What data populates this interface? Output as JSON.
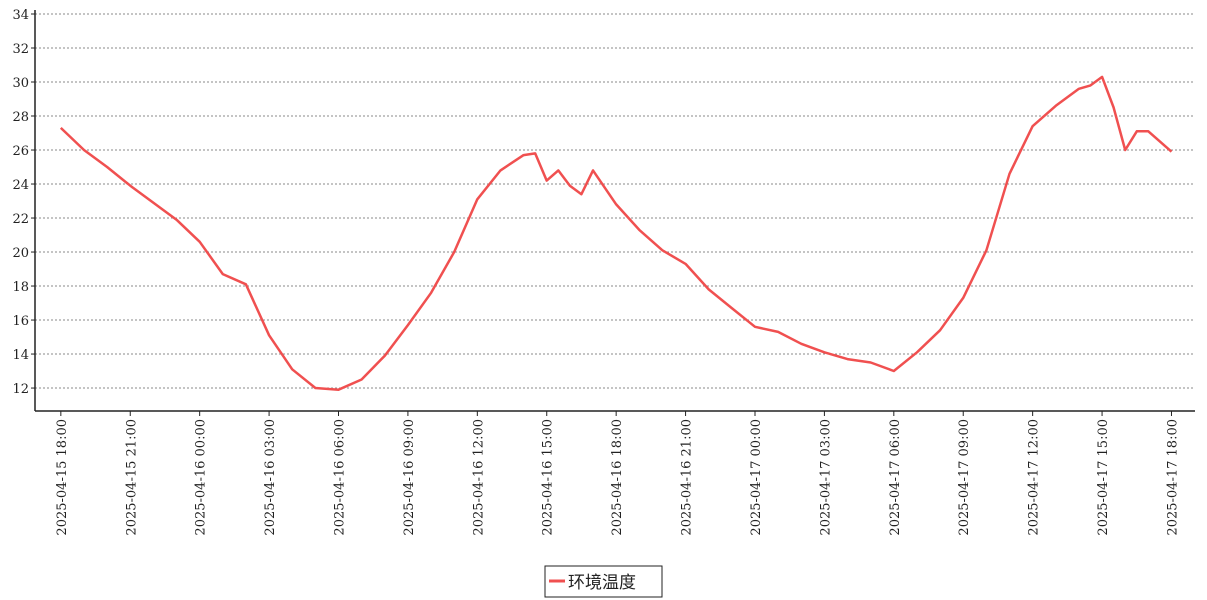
{
  "chart_data": {
    "type": "line",
    "x": [
      "2025-04-15 18:00",
      "2025-04-15 19:00",
      "2025-04-15 20:00",
      "2025-04-15 21:00",
      "2025-04-15 22:00",
      "2025-04-15 23:00",
      "2025-04-16 00:00",
      "2025-04-16 01:00",
      "2025-04-16 02:00",
      "2025-04-16 03:00",
      "2025-04-16 04:00",
      "2025-04-16 05:00",
      "2025-04-16 06:00",
      "2025-04-16 07:00",
      "2025-04-16 08:00",
      "2025-04-16 09:00",
      "2025-04-16 10:00",
      "2025-04-16 11:00",
      "2025-04-16 12:00",
      "2025-04-16 13:00",
      "2025-04-16 14:00",
      "2025-04-16 14:30",
      "2025-04-16 15:00",
      "2025-04-16 15:30",
      "2025-04-16 16:00",
      "2025-04-16 16:30",
      "2025-04-16 17:00",
      "2025-04-16 18:00",
      "2025-04-16 19:00",
      "2025-04-16 20:00",
      "2025-04-16 21:00",
      "2025-04-16 22:00",
      "2025-04-16 23:00",
      "2025-04-17 00:00",
      "2025-04-17 01:00",
      "2025-04-17 02:00",
      "2025-04-17 03:00",
      "2025-04-17 04:00",
      "2025-04-17 05:00",
      "2025-04-17 06:00",
      "2025-04-17 07:00",
      "2025-04-17 08:00",
      "2025-04-17 09:00",
      "2025-04-17 10:00",
      "2025-04-17 11:00",
      "2025-04-17 12:00",
      "2025-04-17 13:00",
      "2025-04-17 14:00",
      "2025-04-17 14:30",
      "2025-04-17 15:00",
      "2025-04-17 15:30",
      "2025-04-17 16:00",
      "2025-04-17 16:30",
      "2025-04-17 17:00",
      "2025-04-17 18:00"
    ],
    "series": [
      {
        "name": "环境温度",
        "color": "#f05050",
        "values": [
          27.3,
          26.0,
          25.0,
          23.9,
          22.9,
          21.9,
          20.6,
          18.7,
          18.1,
          15.1,
          13.1,
          12.0,
          11.9,
          12.5,
          13.9,
          15.7,
          17.6,
          20.0,
          23.1,
          24.8,
          25.7,
          25.8,
          24.2,
          24.8,
          23.9,
          23.4,
          24.8,
          22.8,
          21.3,
          20.1,
          19.3,
          17.8,
          16.7,
          15.6,
          15.3,
          14.6,
          14.1,
          13.7,
          13.5,
          13.0,
          14.1,
          15.4,
          17.3,
          20.1,
          24.6,
          27.4,
          28.6,
          29.6,
          29.8,
          30.3,
          28.5,
          26.0,
          27.1,
          27.1,
          25.9
        ]
      }
    ],
    "xlim": [
      "2025-04-15 16:53",
      "2025-04-17 19:01"
    ],
    "xticks": [
      "2025-04-15 18:00",
      "2025-04-15 21:00",
      "2025-04-16 00:00",
      "2025-04-16 03:00",
      "2025-04-16 06:00",
      "2025-04-16 09:00",
      "2025-04-16 12:00",
      "2025-04-16 15:00",
      "2025-04-16 18:00",
      "2025-04-16 21:00",
      "2025-04-17 00:00",
      "2025-04-17 03:00",
      "2025-04-17 06:00",
      "2025-04-17 09:00",
      "2025-04-17 12:00",
      "2025-04-17 15:00",
      "2025-04-17 18:00"
    ],
    "ylim": [
      10.65,
      34
    ],
    "yticks": [
      12,
      14,
      16,
      18,
      20,
      22,
      24,
      26,
      28,
      30,
      32,
      34
    ],
    "grid": true
  }
}
